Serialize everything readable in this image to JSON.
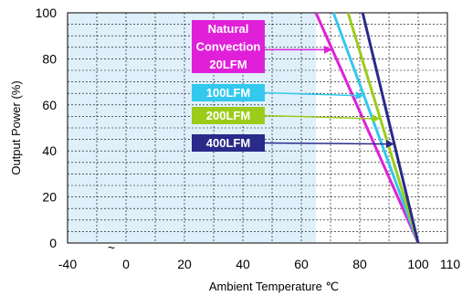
{
  "chart_data": {
    "type": "line",
    "title": "",
    "xlabel": "Ambient Temperature ℃",
    "ylabel": "Output Power  (%)",
    "xlim": [
      -40,
      110
    ],
    "ylim": [
      0,
      100
    ],
    "x_ticks": [
      -40,
      0,
      20,
      40,
      60,
      80,
      100,
      110
    ],
    "x_tick_labels": [
      "-40",
      "0",
      "20",
      "40",
      "60",
      "80",
      "100",
      "110"
    ],
    "y_ticks": [
      0,
      20,
      40,
      60,
      80,
      100
    ],
    "y_tick_labels": [
      "0",
      "20",
      "40",
      "60",
      "80",
      "100"
    ],
    "axis_break_symbol": "~",
    "grid": true,
    "shaded_region_x": [
      -40,
      65
    ],
    "shade_color": "#dff0fb",
    "series": [
      {
        "name": "Natural Convection 20LFM",
        "label_lines": [
          "Natural",
          "Convection",
          "20LFM"
        ],
        "color": "#e020d8",
        "x": [
          65,
          100
        ],
        "y": [
          100,
          0
        ],
        "label_y": 84
      },
      {
        "name": "100LFM",
        "label_lines": [
          "100LFM"
        ],
        "color": "#33c8ee",
        "x": [
          71,
          100
        ],
        "y": [
          100,
          0
        ],
        "label_y": 64
      },
      {
        "name": "200LFM",
        "label_lines": [
          "200LFM"
        ],
        "color": "#9ccc1a",
        "x": [
          76,
          100
        ],
        "y": [
          100,
          0
        ],
        "label_y": 54
      },
      {
        "name": "400LFM",
        "label_lines": [
          "400LFM"
        ],
        "color": "#2a2a8a",
        "x": [
          81,
          100
        ],
        "y": [
          100,
          0
        ],
        "label_y": 43
      }
    ]
  }
}
